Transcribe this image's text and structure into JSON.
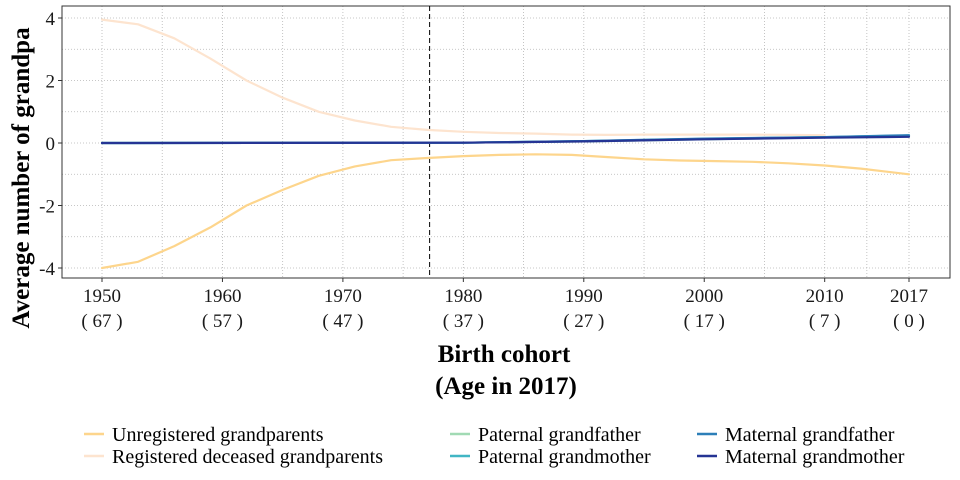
{
  "chart_data": {
    "type": "line",
    "title": "",
    "xlabel": "Birth cohort",
    "xlabel2": "(Age in 2017)",
    "ylabel": "Average number of grandpa",
    "xlim": [
      1950,
      2017
    ],
    "ylim": [
      -4,
      4
    ],
    "grid": true,
    "legend_position": "bottom",
    "vline_x": 1977.2,
    "x_ticks": [
      {
        "year": "1950",
        "age": "( 67 )",
        "value": 1950
      },
      {
        "year": "1960",
        "age": "( 57 )",
        "value": 1960
      },
      {
        "year": "1970",
        "age": "( 47 )",
        "value": 1970
      },
      {
        "year": "1980",
        "age": "( 37 )",
        "value": 1980
      },
      {
        "year": "1990",
        "age": "( 27 )",
        "value": 1990
      },
      {
        "year": "2000",
        "age": "( 17 )",
        "value": 2000
      },
      {
        "year": "2010",
        "age": "( 7 )",
        "value": 2010
      },
      {
        "year": "2017",
        "age": "( 0 )",
        "value": 2017
      }
    ],
    "y_ticks": [
      {
        "label": "4",
        "value": 4
      },
      {
        "label": "2",
        "value": 2
      },
      {
        "label": "0",
        "value": 0
      },
      {
        "label": "-2",
        "value": -2
      },
      {
        "label": "-4",
        "value": -4
      }
    ],
    "series": [
      {
        "name": "Unregistered grandparents",
        "color": "#fdd58c",
        "x": [
          1950,
          1953,
          1956,
          1959,
          1962,
          1965,
          1968,
          1971,
          1974,
          1977,
          1980,
          1983,
          1986,
          1989,
          1992,
          1995,
          1998,
          2001,
          2004,
          2007,
          2010,
          2013,
          2017
        ],
        "y": [
          -4.0,
          -3.8,
          -3.3,
          -2.7,
          -2.0,
          -1.5,
          -1.05,
          -0.75,
          -0.55,
          -0.48,
          -0.42,
          -0.38,
          -0.36,
          -0.38,
          -0.45,
          -0.52,
          -0.56,
          -0.58,
          -0.6,
          -0.65,
          -0.72,
          -0.82,
          -1.0
        ]
      },
      {
        "name": "Registered deceased grandparents",
        "color": "#fde4cf",
        "x": [
          1950,
          1953,
          1956,
          1959,
          1962,
          1965,
          1968,
          1971,
          1974,
          1977,
          1980,
          1983,
          1986,
          1989,
          1992,
          1995,
          1998,
          2001,
          2004,
          2007,
          2010
        ],
        "y": [
          3.95,
          3.8,
          3.35,
          2.7,
          2.0,
          1.45,
          1.0,
          0.72,
          0.52,
          0.42,
          0.36,
          0.32,
          0.3,
          0.27,
          0.26,
          0.27,
          0.27,
          0.27,
          0.27,
          0.26,
          0.25
        ]
      },
      {
        "name": "Paternal grandfather",
        "color": "#a1dab4",
        "x": [
          1950,
          1980,
          1990,
          2000,
          2010,
          2017
        ],
        "y": [
          0.0,
          0.01,
          0.05,
          0.12,
          0.18,
          0.22
        ]
      },
      {
        "name": "Paternal grandmother",
        "color": "#41b6c4",
        "x": [
          1950,
          1980,
          1990,
          2000,
          2010,
          2017
        ],
        "y": [
          0.0,
          0.01,
          0.06,
          0.13,
          0.19,
          0.24
        ]
      },
      {
        "name": "Maternal grandfather",
        "color": "#2c7fb8",
        "x": [
          1950,
          1980,
          1990,
          2000,
          2010,
          2017
        ],
        "y": [
          0.0,
          0.01,
          0.06,
          0.14,
          0.19,
          0.25
        ]
      },
      {
        "name": "Maternal grandmother",
        "color": "#253494",
        "x": [
          1950,
          1980,
          1990,
          2000,
          2010,
          2017
        ],
        "y": [
          0.0,
          0.01,
          0.05,
          0.12,
          0.17,
          0.2
        ]
      }
    ]
  }
}
